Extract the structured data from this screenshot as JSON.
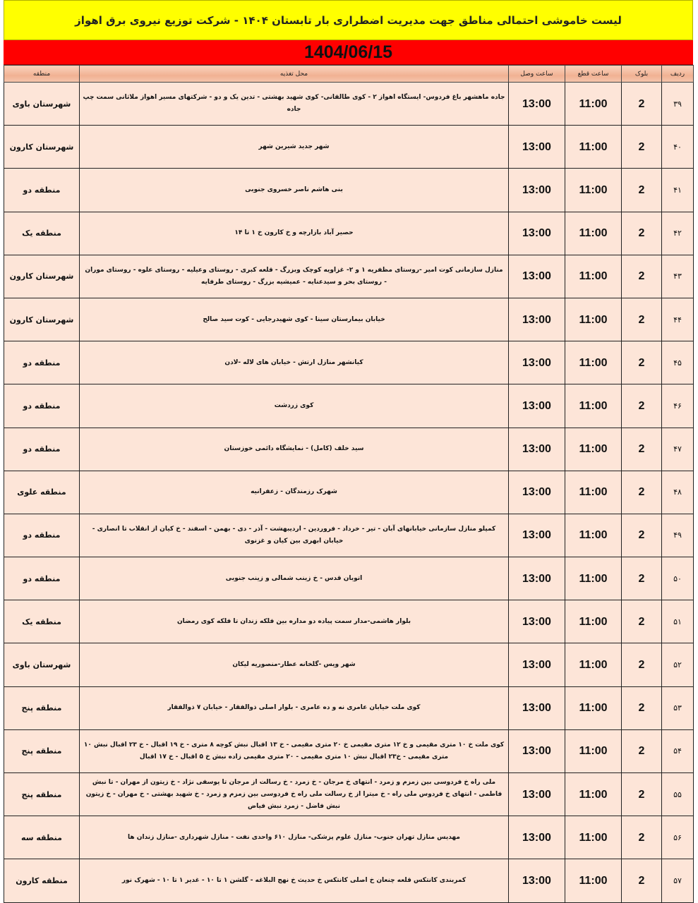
{
  "title": "لیست خاموشی احتمالی مناطق جهت مدیریت اضطراری بار تابستان ۱۴۰۴ - شرکت توزیع نیروی برق اهواز",
  "date": "1404/06/15",
  "colors": {
    "title_bg": "#ffff00",
    "date_bg": "#ff0000",
    "header_bg": "#f1b193",
    "row_bg": "#fde5d8"
  },
  "columns": {
    "row": "ردیف",
    "block": "بلوک",
    "cut": "ساعت قطع",
    "connect": "ساعت وصل",
    "feed": "محل تغذیه",
    "region": "منطقه"
  },
  "rows": [
    {
      "row": "۳۹",
      "block": "2",
      "cut": "11:00",
      "connect": "13:00",
      "feed": "جاده ماهشهر باغ فردوس- ایستگاه اهواز ۲ - کوی طالقانی- کوی شهید بهشتی - تدین یک و دو - شرکتهای مسیر اهواز ملاثانی سمت چپ جاده",
      "region": "شهرستان باوی"
    },
    {
      "row": "۴۰",
      "block": "2",
      "cut": "11:00",
      "connect": "13:00",
      "feed": "شهر جدید شیرین شهر",
      "region": "شهرستان کارون"
    },
    {
      "row": "۴۱",
      "block": "2",
      "cut": "11:00",
      "connect": "13:00",
      "feed": "بنی هاشم ناصر خسروی جنوبی",
      "region": "منطقه دو"
    },
    {
      "row": "۴۲",
      "block": "2",
      "cut": "11:00",
      "connect": "13:00",
      "feed": "حصیر آباد بازارچه و خ کارون خ ۱ تا ۱۴",
      "region": "منطقه یک"
    },
    {
      "row": "۴۳",
      "block": "2",
      "cut": "11:00",
      "connect": "13:00",
      "feed": "منازل سازمانی کوت امیر -روستای مظفریه ۱ و ۲- غزاویه کوچک وبزرگ - قلعه کبری - روستای وعیلیه - روستای علوه - روستای موران - روستای بحر و سیدعنایه - عمیشیه بزرگ - روستای طرفایه",
      "region": "شهرستان کارون"
    },
    {
      "row": "۴۴",
      "block": "2",
      "cut": "11:00",
      "connect": "13:00",
      "feed": "خیابان بیمارستان سینا - کوی شهیدرجایی - کوت سید صالح",
      "region": "شهرستان کارون"
    },
    {
      "row": "۴۵",
      "block": "2",
      "cut": "11:00",
      "connect": "13:00",
      "feed": "کیانشهر منازل ارتش - خیابان های لاله -لادن",
      "region": "منطقه دو"
    },
    {
      "row": "۴۶",
      "block": "2",
      "cut": "11:00",
      "connect": "13:00",
      "feed": "کوی زردشت",
      "region": "منطقه دو"
    },
    {
      "row": "۴۷",
      "block": "2",
      "cut": "11:00",
      "connect": "13:00",
      "feed": "سید خلف (کامل) - نمایشگاه دائمی خوزستان",
      "region": "منطقه دو"
    },
    {
      "row": "۴۸",
      "block": "2",
      "cut": "11:00",
      "connect": "13:00",
      "feed": "شهرک رزمندگان - زعفرانیه",
      "region": "منطقه علوی"
    },
    {
      "row": "۴۹",
      "block": "2",
      "cut": "11:00",
      "connect": "13:00",
      "feed": "کمپلو منازل سازمانی خیابانهای آبان - تیر - خرداد - فروردین - اردیبهشت - آذر - دی - بهمن - اسفند - خ کیان از انقلاب تا انصاری - خیابان ابهری بین کیان و غزنوی",
      "region": "منطقه دو"
    },
    {
      "row": "۵۰",
      "block": "2",
      "cut": "11:00",
      "connect": "13:00",
      "feed": "اتوبان قدس - خ زینب شمالی و زینب جنوبی",
      "region": "منطقه دو"
    },
    {
      "row": "۵۱",
      "block": "2",
      "cut": "11:00",
      "connect": "13:00",
      "feed": "بلوار هاشمی-مدار سمت پیاده دو مداره بین فلکه زندان تا فلکه کوی رمضان",
      "region": "منطقه یک"
    },
    {
      "row": "۵۲",
      "block": "2",
      "cut": "11:00",
      "connect": "13:00",
      "feed": "شهر ویس -گلخانه عطار-منصوریه لیکان",
      "region": "شهرستان باوی"
    },
    {
      "row": "۵۳",
      "block": "2",
      "cut": "11:00",
      "connect": "13:00",
      "feed": "کوی ملت خیابان عامری نه و ده عامری - بلوار اصلی ذوالفقار - خیابان ۷ ذوالفقار",
      "region": "منطقه پنج"
    },
    {
      "row": "۵۴",
      "block": "2",
      "cut": "11:00",
      "connect": "13:00",
      "feed": "کوی ملت خ ۱۰ متری مقیمی و خ ۱۲ متری مقیمی خ ۲۰ متری مقیمی - خ ۱۳ اقبال نبش کوچه ۸ متری - خ ۱۹ اقبال - خ ۲۳ اقبال نبش ۱۰ متری مقیمی - خ۲۳ اقبال نبش ۱۰ متری مقیمی - ۲۰ متری مقیمی زاده نبش خ ۵ اقبال - خ ۱۷ اقبال",
      "region": "منطقه پنج"
    },
    {
      "row": "۵۵",
      "block": "2",
      "cut": "11:00",
      "connect": "13:00",
      "feed": "ملی راه خ فردوسی بین زمزم و زمرد - انتهای خ مرجان - خ زمرد - خ رسالت از مرجان تا یوسفی نژاد - خ زیتون از مهران - تا نبش فاطمی - انتهای خ فردوس ملی راه - خ میترا از خ رسالت ملی راه خ فردوسی بین زمزم و زمرد - خ شهید بهشتی - خ مهران - خ زیتون نبش فاضل - زمرد نبش فیاض",
      "region": "منطقه پنج"
    },
    {
      "row": "۵۶",
      "block": "2",
      "cut": "11:00",
      "connect": "13:00",
      "feed": "مهدیس منازل تهران جنوب- منازل علوم پزشکی- منازل ۶۱۰ واحدی نفت - منازل شهرداری -منازل زندان ها",
      "region": "منطقه سه"
    },
    {
      "row": "۵۷",
      "block": "2",
      "cut": "11:00",
      "connect": "13:00",
      "feed": "کمربندی کانتکس قلعه چنعان خ اصلی کانتکس خ حدیث خ نهج البلاغه - گلشن ۱ تا ۱۰ - غدیر ۱ تا ۱۰ - شهرک نور",
      "region": "منطقه کارون"
    }
  ]
}
